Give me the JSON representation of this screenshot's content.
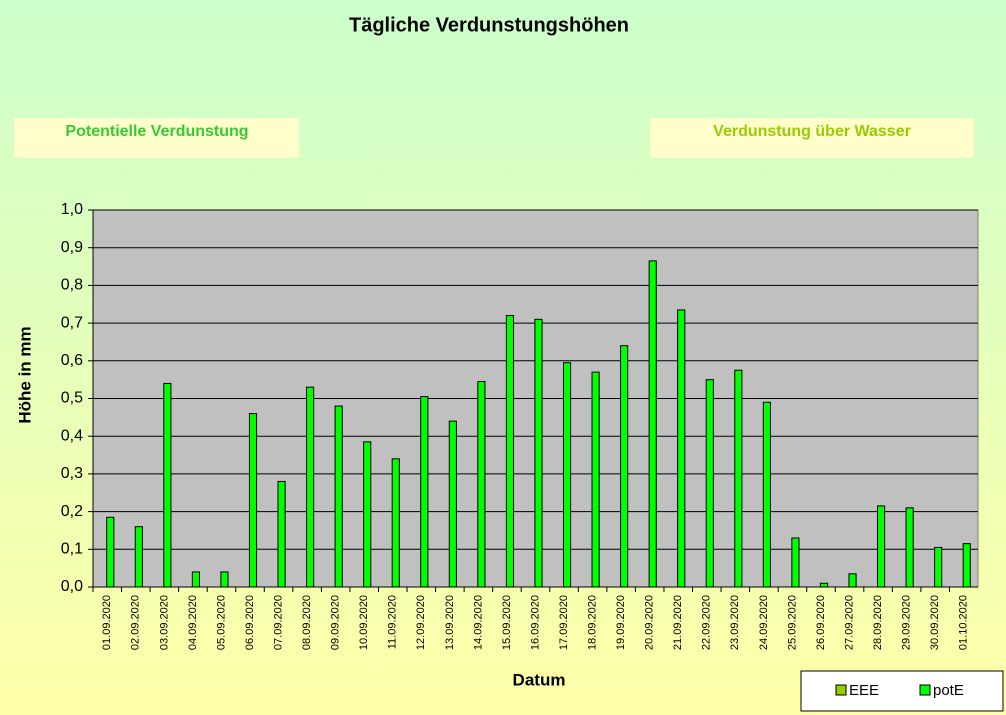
{
  "chart_data": {
    "type": "bar",
    "title": "Tägliche Verdunstungshöhen",
    "annotations": [
      "Potentielle Verdunstung",
      "Verdunstung über Wasser"
    ],
    "y_label": "Höhe in mm",
    "x_label": "Datum",
    "categories": [
      "01.09.2020",
      "02.09.2020",
      "03.09.2020",
      "04.09.2020",
      "05.09.2020",
      "06.09.2020",
      "07.09.2020",
      "08.09.2020",
      "09.09.2020",
      "10.09.2020",
      "11.09.2020",
      "12.09.2020",
      "13.09.2020",
      "14.09.2020",
      "15.09.2020",
      "16.09.2020",
      "17.09.2020",
      "18.09.2020",
      "19.09.2020",
      "20.09.2020",
      "21.09.2020",
      "22.09.2020",
      "23.09.2020",
      "24.09.2020",
      "25.09.2020",
      "26.09.2020",
      "27.09.2020",
      "28.09.2020",
      "29.09.2020",
      "30.09.2020",
      "01.10.2020"
    ],
    "series": [
      {
        "name": "EEE",
        "color": "#99cc00",
        "values": [
          null,
          null,
          null,
          null,
          null,
          null,
          null,
          null,
          null,
          null,
          null,
          null,
          null,
          null,
          null,
          null,
          null,
          null,
          null,
          null,
          null,
          null,
          null,
          null,
          null,
          null,
          null,
          null,
          null,
          null,
          null
        ]
      },
      {
        "name": "potE",
        "color": "#00ff00",
        "values": [
          0.185,
          0.16,
          0.54,
          0.04,
          0.04,
          0.46,
          0.28,
          0.53,
          0.48,
          0.385,
          0.34,
          0.505,
          0.44,
          0.545,
          0.72,
          0.71,
          0.595,
          0.57,
          0.64,
          0.865,
          0.735,
          0.55,
          0.575,
          0.49,
          0.13,
          0.01,
          0.035,
          0.215,
          0.21,
          0.105,
          0.115
        ]
      }
    ],
    "ylim": [
      0,
      1
    ],
    "yticks": [
      {
        "value": 0,
        "label": "0,0"
      },
      {
        "value": 0.1,
        "label": "0,1"
      },
      {
        "value": 0.2,
        "label": "0,2"
      },
      {
        "value": 0.3,
        "label": "0,3"
      },
      {
        "value": 0.4,
        "label": "0,4"
      },
      {
        "value": 0.5,
        "label": "0,5"
      },
      {
        "value": 0.6,
        "label": "0,6"
      },
      {
        "value": 0.7,
        "label": "0,7"
      },
      {
        "value": 0.8,
        "label": "0,8"
      },
      {
        "value": 0.9,
        "label": "0,9"
      },
      {
        "value": 1,
        "label": "1,0"
      }
    ],
    "grid": true,
    "legend": "bottom-right"
  }
}
